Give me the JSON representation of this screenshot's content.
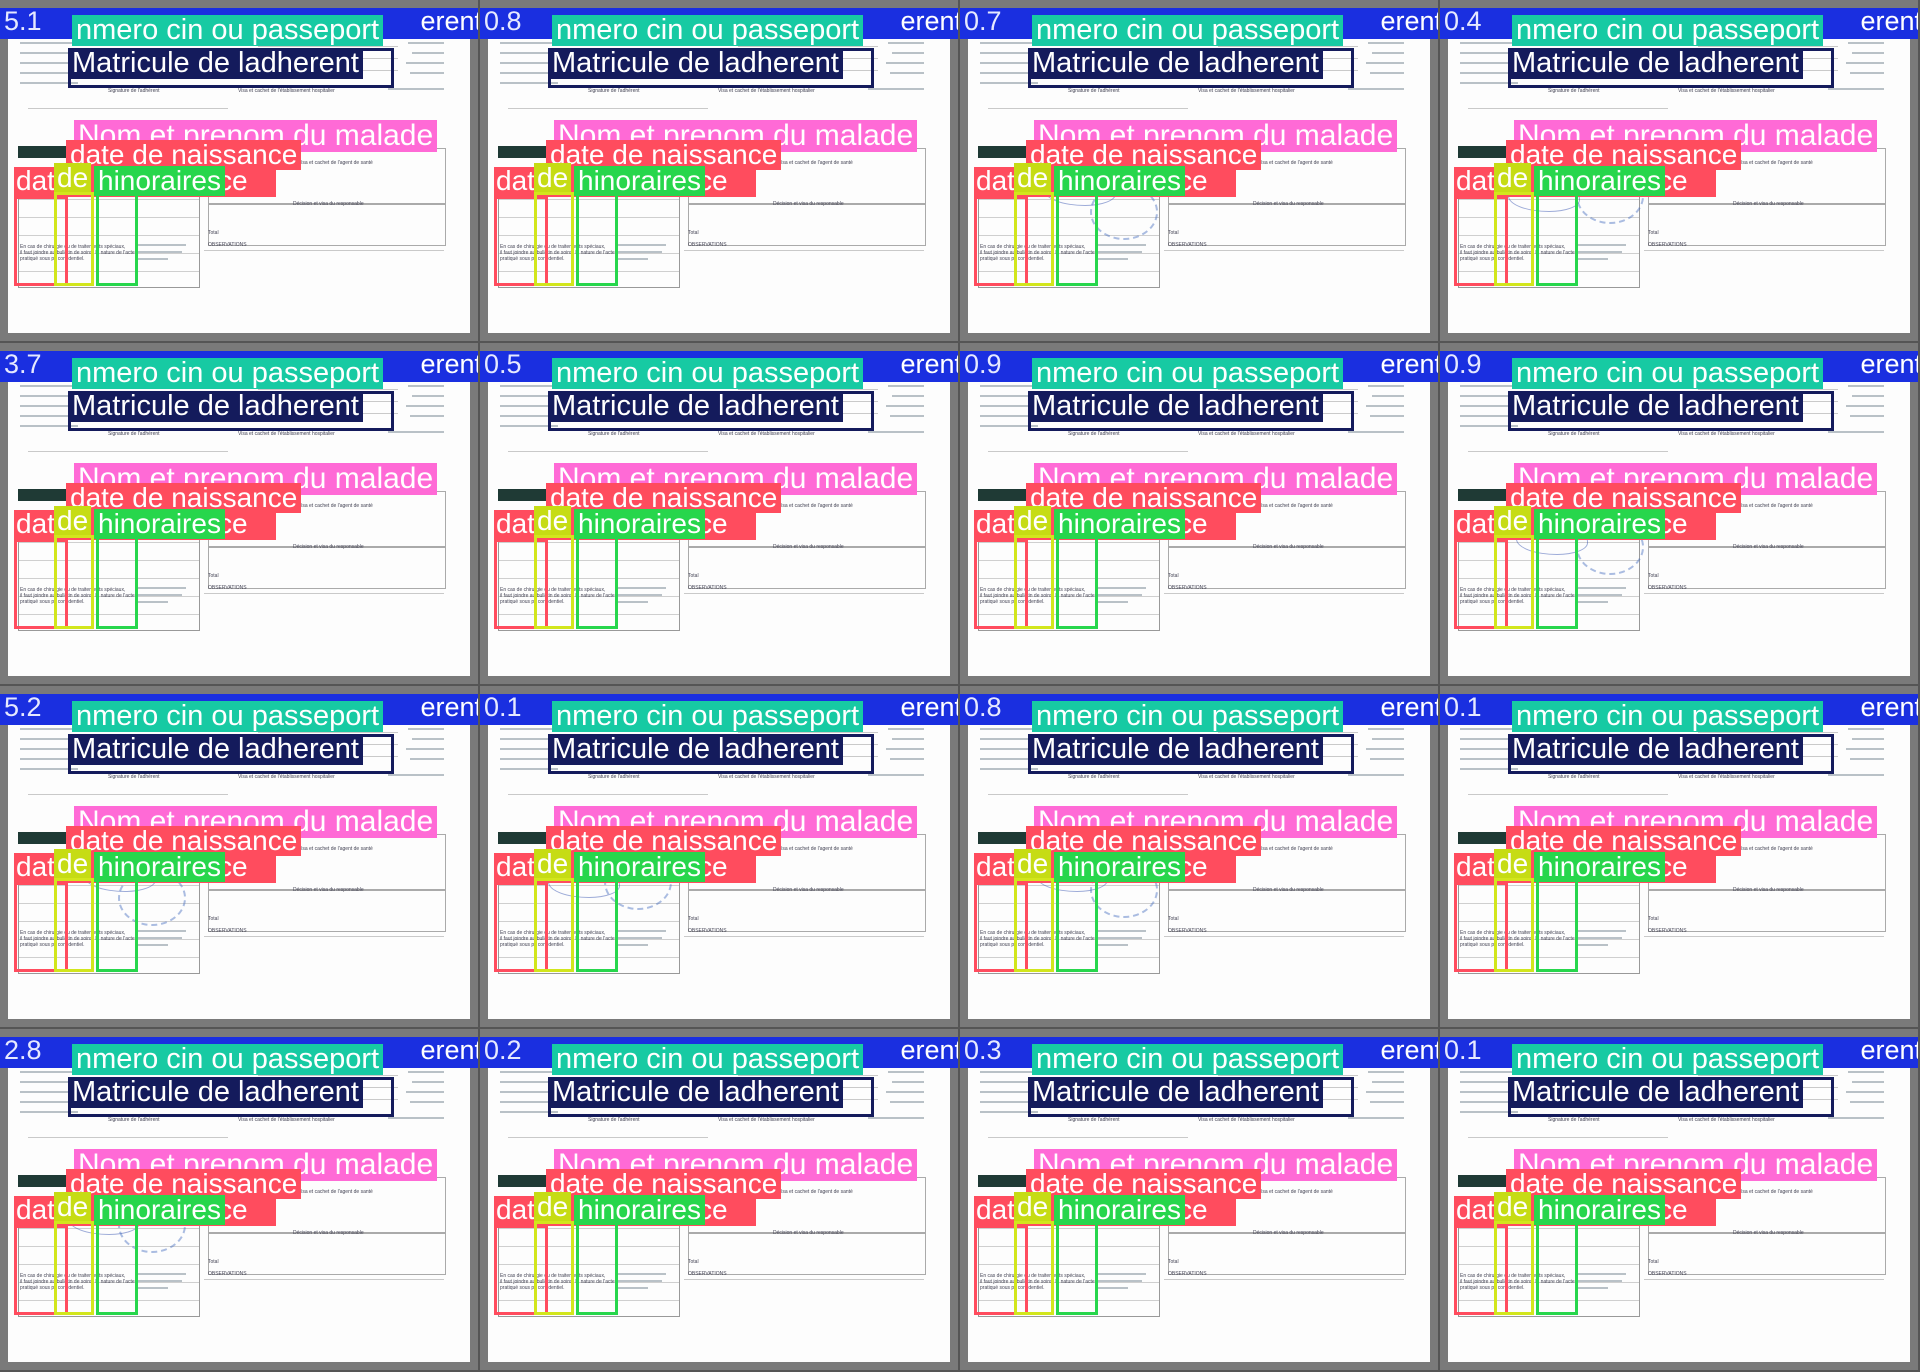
{
  "labels": {
    "cin": "Numero cin ou passeport",
    "cin_visible": "nmero cin ou passeport",
    "blue_visible": "erent",
    "matricule": "Matricule de ladherent",
    "nom": "Nom et prenom du malade",
    "naissance": "date de naissance",
    "date_acte_left": "dat",
    "date_acte_right": "ce",
    "de": "de",
    "honoraires": "hinoraires"
  },
  "tile_prefixes": [
    "5.1",
    "0.8",
    "0.7",
    "0.4",
    "3.7",
    "0.5",
    "0.9",
    "0.9",
    "5.2",
    "0.1",
    "0.8",
    "0.1",
    "2.8",
    "0.2",
    "0.3",
    "0.1"
  ],
  "doc_text": {
    "signature": "Signature de l'adhérent",
    "visa": "Visa et cachet de l'établissement hospitalier",
    "total": "Total",
    "observations": "OBSERVATIONS",
    "decision": "Décision et visa du responsable",
    "visa_agent": "Visa et cachet de l'agent de santé",
    "footer1": "En cas de chirurgie ou de traitements spéciaux,",
    "footer2": "il faut joindre au bulletin de soins, la nature de l'acte",
    "footer3": "pratiqué sous pli confidentiel."
  },
  "colors": {
    "cin_label": "#17caa3",
    "blue_bar": "#1a2fe0",
    "matricule_label": "#141b5c",
    "nom_label": "#ff6ad6",
    "naissance_label": "#ff4c5e",
    "de_label": "#c6dc14",
    "honoraires_label": "#27d64c"
  }
}
